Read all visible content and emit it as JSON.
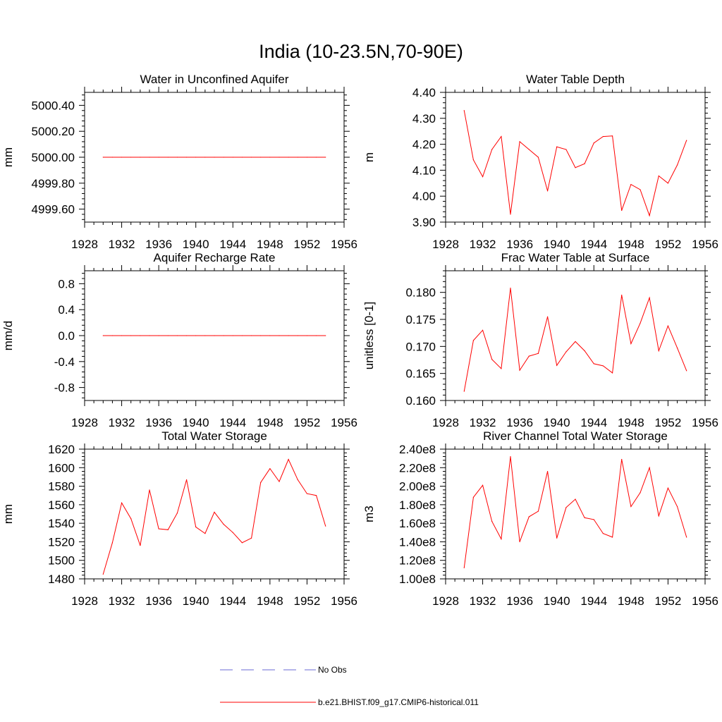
{
  "title": "India (10-23.5N,70-90E)",
  "legend": [
    {
      "label": "No Obs",
      "color": "#6b6bd6",
      "style": "dashed"
    },
    {
      "label": "b.e21.BHIST.f09_g17.CMIP6-historical.011",
      "color": "#ff0000",
      "style": "solid"
    }
  ],
  "chart_data": [
    {
      "type": "line",
      "title": "Water in Unconfined Aquifer",
      "xlabel": "",
      "ylabel": "mm",
      "xlim": [
        1928,
        1956
      ],
      "ylim": [
        4999.5,
        5000.5
      ],
      "xticks": [
        1928,
        1932,
        1936,
        1940,
        1944,
        1948,
        1952,
        1956
      ],
      "yticks": [
        4999.6,
        4999.8,
        5000.0,
        5000.2,
        5000.4
      ],
      "ytick_labels": [
        "4999.60",
        "4999.80",
        "5000.00",
        "5000.20",
        "5000.40"
      ],
      "series": [
        {
          "name": "b.e21.BHIST.f09_g17.CMIP6-historical.011",
          "color": "#ff0000",
          "x": [
            1930,
            1931,
            1932,
            1933,
            1934,
            1935,
            1936,
            1937,
            1938,
            1939,
            1940,
            1941,
            1942,
            1943,
            1944,
            1945,
            1946,
            1947,
            1948,
            1949,
            1950,
            1951,
            1952,
            1953,
            1954
          ],
          "values": [
            5000,
            5000,
            5000,
            5000,
            5000,
            5000,
            5000,
            5000,
            5000,
            5000,
            5000,
            5000,
            5000,
            5000,
            5000,
            5000,
            5000,
            5000,
            5000,
            5000,
            5000,
            5000,
            5000,
            5000,
            5000
          ]
        }
      ]
    },
    {
      "type": "line",
      "title": "Water Table Depth",
      "xlabel": "",
      "ylabel": "m",
      "xlim": [
        1928,
        1956
      ],
      "ylim": [
        3.9,
        4.4
      ],
      "xticks": [
        1928,
        1932,
        1936,
        1940,
        1944,
        1948,
        1952,
        1956
      ],
      "yticks": [
        3.9,
        4.0,
        4.1,
        4.2,
        4.3,
        4.4
      ],
      "ytick_labels": [
        "3.90",
        "4.00",
        "4.10",
        "4.20",
        "4.30",
        "4.40"
      ],
      "series": [
        {
          "name": "b.e21.BHIST.f09_g17.CMIP6-historical.011",
          "color": "#ff0000",
          "x": [
            1930,
            1931,
            1932,
            1933,
            1934,
            1935,
            1936,
            1937,
            1938,
            1939,
            1940,
            1941,
            1942,
            1943,
            1944,
            1945,
            1946,
            1947,
            1948,
            1949,
            1950,
            1951,
            1952,
            1953,
            1954
          ],
          "values": [
            4.33,
            4.14,
            4.075,
            4.18,
            4.23,
            3.93,
            4.21,
            4.18,
            4.15,
            4.02,
            4.19,
            4.18,
            4.11,
            4.125,
            4.205,
            4.23,
            4.232,
            3.945,
            4.045,
            4.025,
            3.925,
            4.078,
            4.05,
            4.12,
            4.215
          ]
        }
      ]
    },
    {
      "type": "line",
      "title": "Aquifer Recharge Rate",
      "xlabel": "",
      "ylabel": "mm/d",
      "xlim": [
        1928,
        1956
      ],
      "ylim": [
        -1.0,
        1.0
      ],
      "xticks": [
        1928,
        1932,
        1936,
        1940,
        1944,
        1948,
        1952,
        1956
      ],
      "yticks": [
        -0.8,
        -0.4,
        0.0,
        0.4,
        0.8
      ],
      "ytick_labels": [
        "-0.8",
        "-0.4",
        "0.0",
        "0.4",
        "0.8"
      ],
      "series": [
        {
          "name": "b.e21.BHIST.f09_g17.CMIP6-historical.011",
          "color": "#ff0000",
          "x": [
            1930,
            1931,
            1932,
            1933,
            1934,
            1935,
            1936,
            1937,
            1938,
            1939,
            1940,
            1941,
            1942,
            1943,
            1944,
            1945,
            1946,
            1947,
            1948,
            1949,
            1950,
            1951,
            1952,
            1953,
            1954
          ],
          "values": [
            0,
            0,
            0,
            0,
            0,
            0,
            0,
            0,
            0,
            0,
            0,
            0,
            0,
            0,
            0,
            0,
            0,
            0,
            0,
            0,
            0,
            0,
            0,
            0,
            0
          ]
        }
      ]
    },
    {
      "type": "line",
      "title": "Frac Water Table at Surface",
      "xlabel": "",
      "ylabel": "unitless [0-1]",
      "xlim": [
        1928,
        1956
      ],
      "ylim": [
        0.16,
        0.184
      ],
      "xticks": [
        1928,
        1932,
        1936,
        1940,
        1944,
        1948,
        1952,
        1956
      ],
      "yticks": [
        0.16,
        0.165,
        0.17,
        0.175,
        0.18
      ],
      "ytick_labels": [
        "0.160",
        "0.165",
        "0.170",
        "0.175",
        "0.180"
      ],
      "series": [
        {
          "name": "b.e21.BHIST.f09_g17.CMIP6-historical.011",
          "color": "#ff0000",
          "x": [
            1930,
            1931,
            1932,
            1933,
            1934,
            1935,
            1936,
            1937,
            1938,
            1939,
            1940,
            1941,
            1942,
            1943,
            1944,
            1945,
            1946,
            1947,
            1948,
            1949,
            1950,
            1951,
            1952,
            1953,
            1954
          ],
          "values": [
            0.1617,
            0.1711,
            0.173,
            0.1676,
            0.1659,
            0.1808,
            0.1656,
            0.1682,
            0.1687,
            0.1755,
            0.1665,
            0.169,
            0.1709,
            0.1692,
            0.1668,
            0.1664,
            0.1651,
            0.1795,
            0.1705,
            0.1743,
            0.179,
            0.1692,
            0.1738,
            0.1697,
            0.1655
          ]
        }
      ]
    },
    {
      "type": "line",
      "title": "Total Water Storage",
      "xlabel": "",
      "ylabel": "mm",
      "xlim": [
        1928,
        1956
      ],
      "ylim": [
        1480,
        1620
      ],
      "xticks": [
        1928,
        1932,
        1936,
        1940,
        1944,
        1948,
        1952,
        1956
      ],
      "yticks": [
        1480,
        1500,
        1520,
        1540,
        1560,
        1580,
        1600,
        1620
      ],
      "ytick_labels": [
        "1480",
        "1500",
        "1520",
        "1540",
        "1560",
        "1580",
        "1600",
        "1620"
      ],
      "series": [
        {
          "name": "b.e21.BHIST.f09_g17.CMIP6-historical.011",
          "color": "#ff0000",
          "x": [
            1930,
            1931,
            1932,
            1933,
            1934,
            1935,
            1936,
            1937,
            1938,
            1939,
            1940,
            1941,
            1942,
            1943,
            1944,
            1945,
            1946,
            1947,
            1948,
            1949,
            1950,
            1951,
            1952,
            1953,
            1954
          ],
          "values": [
            1485,
            1519,
            1562,
            1545,
            1516,
            1576,
            1534,
            1533,
            1551,
            1587,
            1536,
            1529,
            1552,
            1539,
            1530,
            1519,
            1524,
            1584,
            1599,
            1585,
            1609,
            1587,
            1572,
            1570,
            1537
          ]
        }
      ]
    },
    {
      "type": "line",
      "title": "River Channel Total Water Storage",
      "xlabel": "",
      "ylabel": "m3",
      "xlim": [
        1928,
        1956
      ],
      "ylim": [
        100000000,
        240000000
      ],
      "xticks": [
        1928,
        1932,
        1936,
        1940,
        1944,
        1948,
        1952,
        1956
      ],
      "yticks": [
        100000000,
        120000000,
        140000000,
        160000000,
        180000000,
        200000000,
        220000000,
        240000000
      ],
      "ytick_labels": [
        "1.00e8",
        "1.20e8",
        "1.40e8",
        "1.60e8",
        "1.80e8",
        "2.00e8",
        "2.20e8",
        "2.40e8"
      ],
      "series": [
        {
          "name": "b.e21.BHIST.f09_g17.CMIP6-historical.011",
          "color": "#ff0000",
          "x": [
            1930,
            1931,
            1932,
            1933,
            1934,
            1935,
            1936,
            1937,
            1938,
            1939,
            1940,
            1941,
            1942,
            1943,
            1944,
            1945,
            1946,
            1947,
            1948,
            1949,
            1950,
            1951,
            1952,
            1953,
            1954
          ],
          "values": [
            112000000,
            188000000,
            201000000,
            162000000,
            143000000,
            232000000,
            140000000,
            167000000,
            173000000,
            216000000,
            144000000,
            177000000,
            186000000,
            166000000,
            164000000,
            149000000,
            145000000,
            229000000,
            178000000,
            193000000,
            220000000,
            168000000,
            198000000,
            178000000,
            145000000
          ]
        }
      ]
    }
  ]
}
